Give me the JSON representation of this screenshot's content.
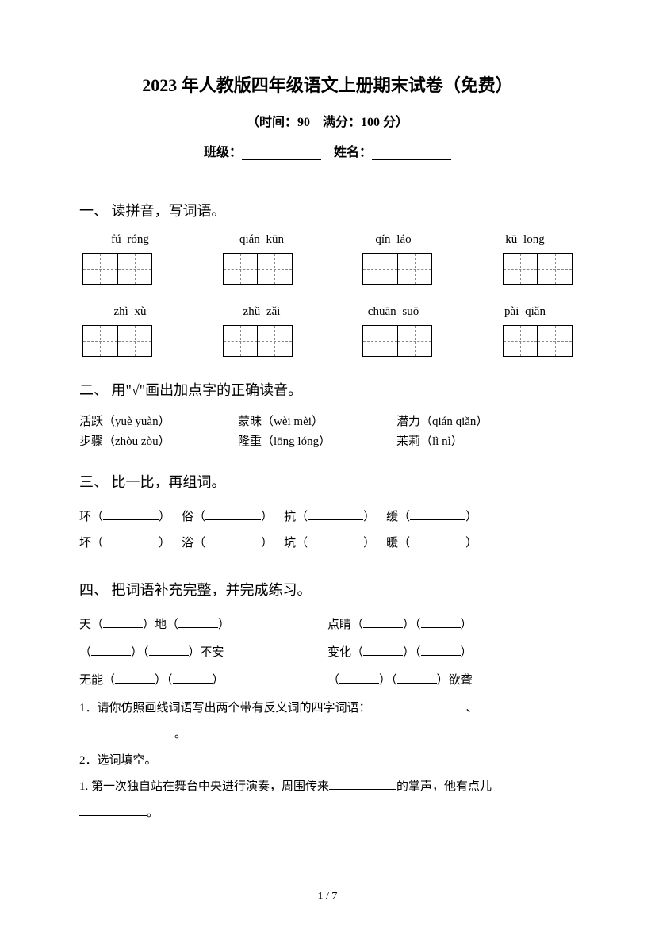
{
  "title": "2023 年人教版四年级语文上册期末试卷（免费）",
  "subtitle": "（时间：90　满分：100 分）",
  "info": {
    "class_label": "班级：",
    "name_label": "姓名："
  },
  "q1": {
    "title": "一、 读拼音，写词语。",
    "row1": [
      {
        "p1": "fú",
        "p2": "róng"
      },
      {
        "p1": "qián",
        "p2": "kūn"
      },
      {
        "p1": "qín",
        "p2": "láo"
      },
      {
        "p1": "kū",
        "p2": "long"
      }
    ],
    "row2": [
      {
        "p1": "zhì",
        "p2": "xù"
      },
      {
        "p1": "zhǔ",
        "p2": "zǎi"
      },
      {
        "p1": "chuān",
        "p2": "suō"
      },
      {
        "p1": "pài",
        "p2": "qiǎn"
      }
    ]
  },
  "q2": {
    "title": "二、 用\"√\"画出加点字的正确读音。",
    "rows": [
      [
        {
          "chars": "活跃",
          "pinyin": "（yuè yuàn）"
        },
        {
          "chars": "蒙昧",
          "pinyin": "（wèi mèi）"
        },
        {
          "chars": "潜力",
          "pinyin": "（qián qiǎn）"
        }
      ],
      [
        {
          "chars": "步骤",
          "pinyin": "（zhòu zòu）"
        },
        {
          "chars": "隆重",
          "pinyin": "（lōng lóng）"
        },
        {
          "chars": "茉莉",
          "pinyin": "（lì nì）"
        }
      ]
    ]
  },
  "q3": {
    "title": "三、 比一比，再组词。",
    "rows": [
      [
        "环",
        "俗",
        "抗",
        "缓"
      ],
      [
        "坏",
        "浴",
        "坑",
        "暖"
      ]
    ]
  },
  "q4": {
    "title": "四、 把词语补充完整，并完成练习。",
    "rows": [
      {
        "left_pre": "天（",
        "left_mid": "）地（",
        "left_post": "）",
        "right_pre": "点睛（",
        "right_mid": "）（",
        "right_post": "）"
      },
      {
        "left_pre": "（",
        "left_mid": "）（",
        "left_post": "）不安",
        "right_pre": "变化（",
        "right_mid": "）（",
        "right_post": "）"
      },
      {
        "left_pre": "无能（",
        "left_mid": "）（",
        "left_post": "）",
        "right_pre": "（",
        "right_mid": "）（",
        "right_post": "）欲聋"
      }
    ],
    "sub1": "1．请你仿照画线词语写出两个带有反义词的四字词语：",
    "sub1_end": "、",
    "sub1_end2": "。",
    "sub2": "2．选词填空。",
    "sub3_pre": "1. 第一次独自站在舞台中央进行演奏，周围传来",
    "sub3_post": "的掌声，他有点儿",
    "sub3_end": "。"
  },
  "footer": "1 / 7"
}
